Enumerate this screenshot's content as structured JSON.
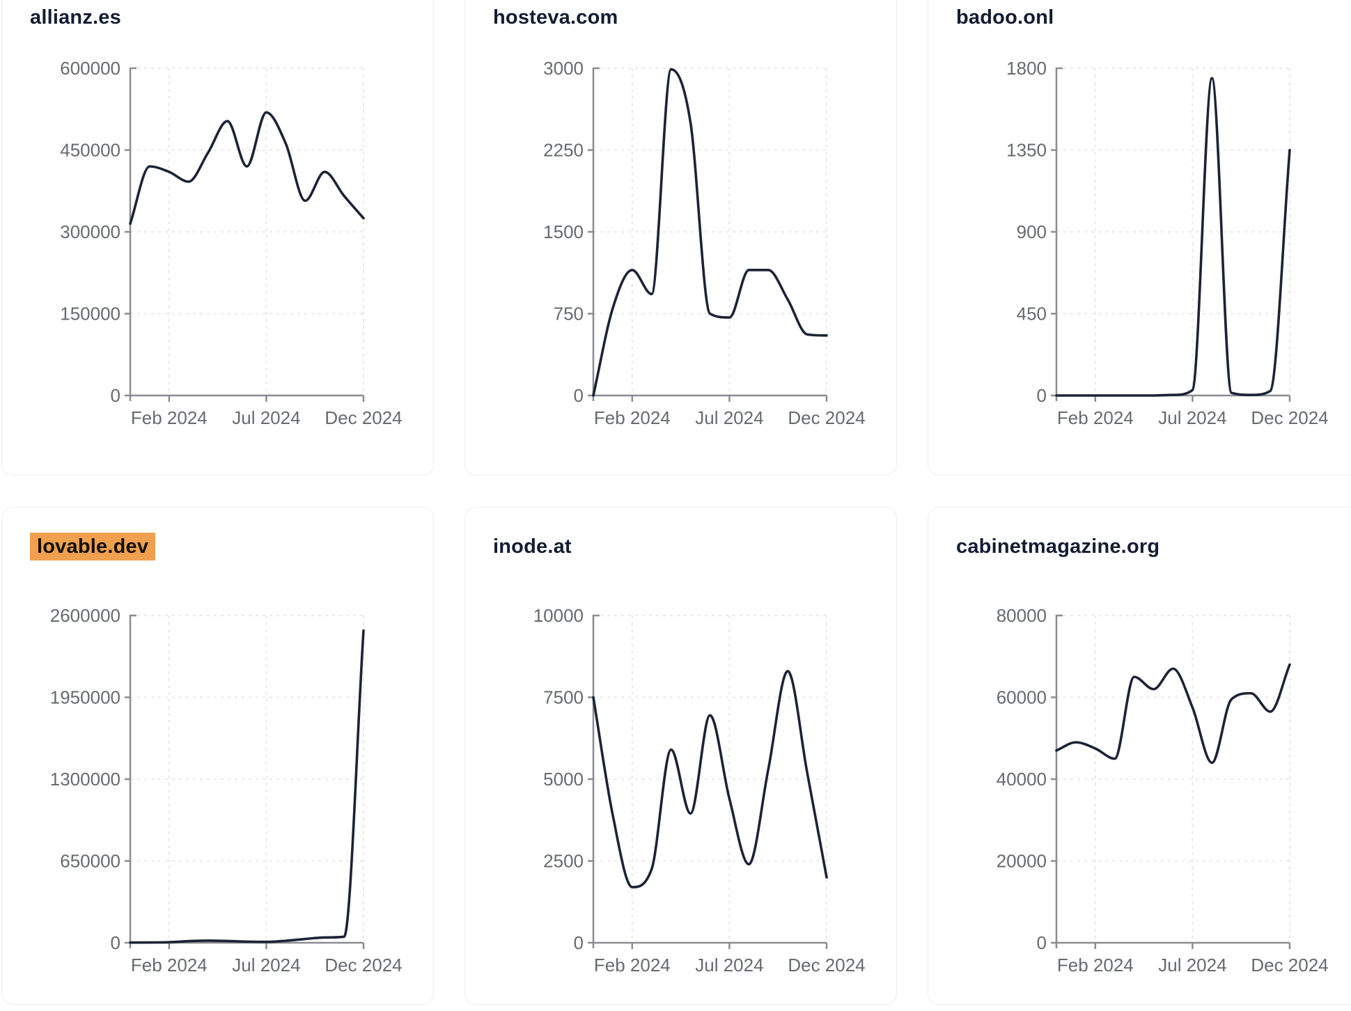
{
  "page": {
    "background": "#ffffff"
  },
  "theme": {
    "card_background": "#ffffff",
    "card_border": "#e9ecf2",
    "title_color": "#131c31",
    "highlight_background": "#f0a04e",
    "line_color": "#1c2336",
    "axis_color": "#8a8c91",
    "tick_label_color": "#66696f",
    "gridline_color": "#e7e8ea"
  },
  "x_axis": {
    "tick_labels": [
      "Feb 2024",
      "Jul 2024",
      "Dec 2024"
    ],
    "tick_month_indices": [
      2,
      7,
      12
    ]
  },
  "chart_data": [
    {
      "type": "line",
      "title": "allianz.es",
      "highlighted": false,
      "y_ticks": [
        0,
        150000,
        300000,
        450000,
        600000
      ],
      "x_months": [
        "Dec 2023",
        "Jan 2024",
        "Feb 2024",
        "Mar 2024",
        "Apr 2024",
        "May 2024",
        "Jun 2024",
        "Jul 2024",
        "Aug 2024",
        "Sep 2024",
        "Oct 2024",
        "Nov 2024",
        "Dec 2024"
      ],
      "values": [
        315000,
        420000,
        410000,
        392000,
        445000,
        503000,
        420000,
        519000,
        462000,
        357000,
        410000,
        366000,
        325000
      ]
    },
    {
      "type": "line",
      "title": "hosteva.com",
      "highlighted": false,
      "y_ticks": [
        0,
        750,
        1500,
        2250,
        3000
      ],
      "x_months": [
        "Dec 2023",
        "Jan 2024",
        "Feb 2024",
        "Mar 2024",
        "Apr 2024",
        "May 2024",
        "Jun 2024",
        "Jul 2024",
        "Aug 2024",
        "Sep 2024",
        "Oct 2024",
        "Nov 2024",
        "Dec 2024"
      ],
      "values": [
        0,
        800,
        1150,
        930,
        2990,
        2500,
        750,
        715,
        1150,
        1150,
        880,
        560,
        550
      ]
    },
    {
      "type": "line",
      "title": "badoo.onl",
      "highlighted": false,
      "y_ticks": [
        0,
        450,
        900,
        1350,
        1800
      ],
      "x_months": [
        "Dec 2023",
        "Jan 2024",
        "Feb 2024",
        "Mar 2024",
        "Apr 2024",
        "May 2024",
        "Jun 2024",
        "Jul 2024",
        "Aug 2024",
        "Sep 2024",
        "Oct 2024",
        "Nov 2024",
        "Dec 2024"
      ],
      "values": [
        0,
        0,
        0,
        0,
        0,
        0,
        3,
        30,
        1745,
        15,
        3,
        25,
        1350
      ]
    },
    {
      "type": "line",
      "title": "lovable.dev",
      "highlighted": true,
      "y_ticks": [
        0,
        650000,
        1300000,
        1950000,
        2600000
      ],
      "x_months": [
        "Dec 2023",
        "Jan 2024",
        "Feb 2024",
        "Mar 2024",
        "Apr 2024",
        "May 2024",
        "Jun 2024",
        "Jul 2024",
        "Aug 2024",
        "Sep 2024",
        "Oct 2024",
        "Nov 2024",
        "Dec 2024"
      ],
      "values": [
        1500,
        2500,
        4500,
        13000,
        17000,
        14000,
        9000,
        7000,
        16000,
        30000,
        42000,
        48000,
        2480000
      ]
    },
    {
      "type": "line",
      "title": "inode.at",
      "highlighted": false,
      "y_ticks": [
        0,
        2500,
        5000,
        7500,
        10000
      ],
      "x_months": [
        "Dec 2023",
        "Jan 2024",
        "Feb 2024",
        "Mar 2024",
        "Apr 2024",
        "May 2024",
        "Jun 2024",
        "Jul 2024",
        "Aug 2024",
        "Sep 2024",
        "Oct 2024",
        "Nov 2024",
        "Dec 2024"
      ],
      "values": [
        7500,
        3900,
        1700,
        2250,
        5900,
        3950,
        6950,
        4400,
        2400,
        5300,
        8300,
        5200,
        2000
      ]
    },
    {
      "type": "line",
      "title": "cabinetmagazine.org",
      "highlighted": false,
      "y_ticks": [
        0,
        20000,
        40000,
        60000,
        80000
      ],
      "x_months": [
        "Dec 2023",
        "Jan 2024",
        "Feb 2024",
        "Mar 2024",
        "Apr 2024",
        "May 2024",
        "Jun 2024",
        "Jul 2024",
        "Aug 2024",
        "Sep 2024",
        "Oct 2024",
        "Nov 2024",
        "Dec 2024"
      ],
      "values": [
        47000,
        49000,
        47500,
        45000,
        65000,
        62000,
        67000,
        57500,
        44000,
        59500,
        61000,
        56500,
        68000
      ]
    }
  ]
}
